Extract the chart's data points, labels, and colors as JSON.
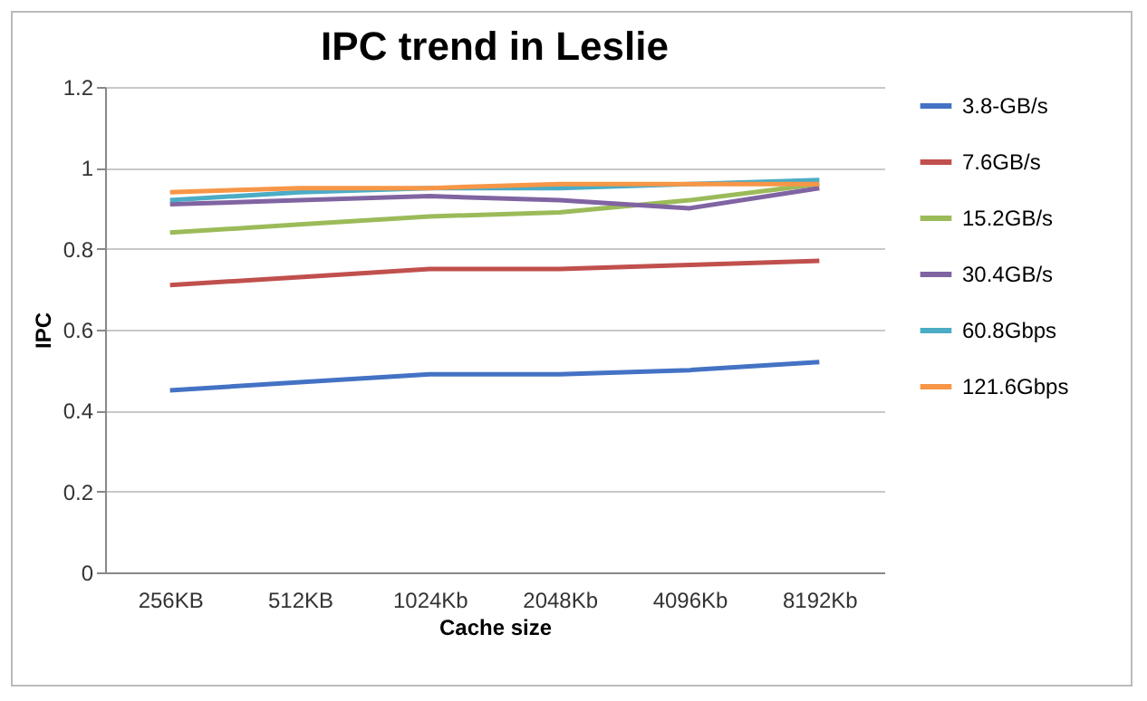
{
  "chart_data": {
    "type": "line",
    "title": "IPC trend in Leslie",
    "xlabel": "Cache size",
    "ylabel": "IPC",
    "categories": [
      "256KB",
      "512KB",
      "1024Kb",
      "2048Kb",
      "4096Kb",
      "8192Kb"
    ],
    "series": [
      {
        "name": "3.8-GB/s",
        "color": "#4472c4",
        "values": [
          0.45,
          0.47,
          0.49,
          0.49,
          0.5,
          0.52
        ]
      },
      {
        "name": "7.6GB/s",
        "color": "#c0504d",
        "values": [
          0.71,
          0.73,
          0.75,
          0.75,
          0.76,
          0.77
        ]
      },
      {
        "name": "15.2GB/s",
        "color": "#9bbb59",
        "values": [
          0.84,
          0.86,
          0.88,
          0.89,
          0.92,
          0.96
        ]
      },
      {
        "name": "30.4GB/s",
        "color": "#8064a2",
        "values": [
          0.91,
          0.92,
          0.93,
          0.92,
          0.9,
          0.95
        ]
      },
      {
        "name": "60.8Gbps",
        "color": "#4bacc6",
        "values": [
          0.92,
          0.94,
          0.95,
          0.95,
          0.96,
          0.97
        ]
      },
      {
        "name": "121.6Gbps",
        "color": "#f79646",
        "values": [
          0.94,
          0.95,
          0.95,
          0.96,
          0.96,
          0.96
        ]
      }
    ],
    "ylim": [
      0,
      1.2
    ],
    "yticks": [
      0,
      0.2,
      0.4,
      0.6,
      0.8,
      1,
      1.2
    ],
    "grid": "y",
    "legend": "right",
    "marker": "none",
    "line_style": "solid"
  }
}
